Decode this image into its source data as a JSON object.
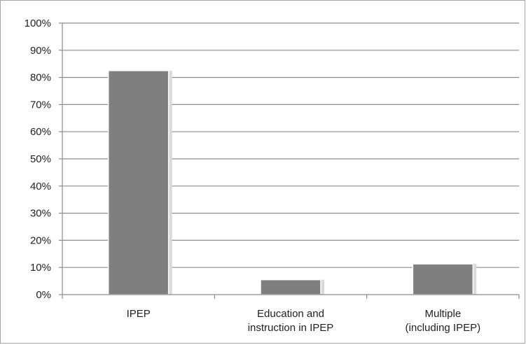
{
  "chart_data": {
    "type": "bar",
    "categories": [
      [
        "IPEP"
      ],
      [
        "Education and",
        "instruction in IPEP"
      ],
      [
        "Multiple",
        "(including IPEP)"
      ]
    ],
    "values": [
      0.825,
      0.055,
      0.113
    ],
    "ylim": [
      0,
      1
    ],
    "y_ticks": [
      "0%",
      "10%",
      "20%",
      "30%",
      "40%",
      "50%",
      "60%",
      "70%",
      "80%",
      "90%",
      "100%"
    ],
    "grid": true,
    "legend": "none",
    "bar_color": "#7f7f7f"
  }
}
